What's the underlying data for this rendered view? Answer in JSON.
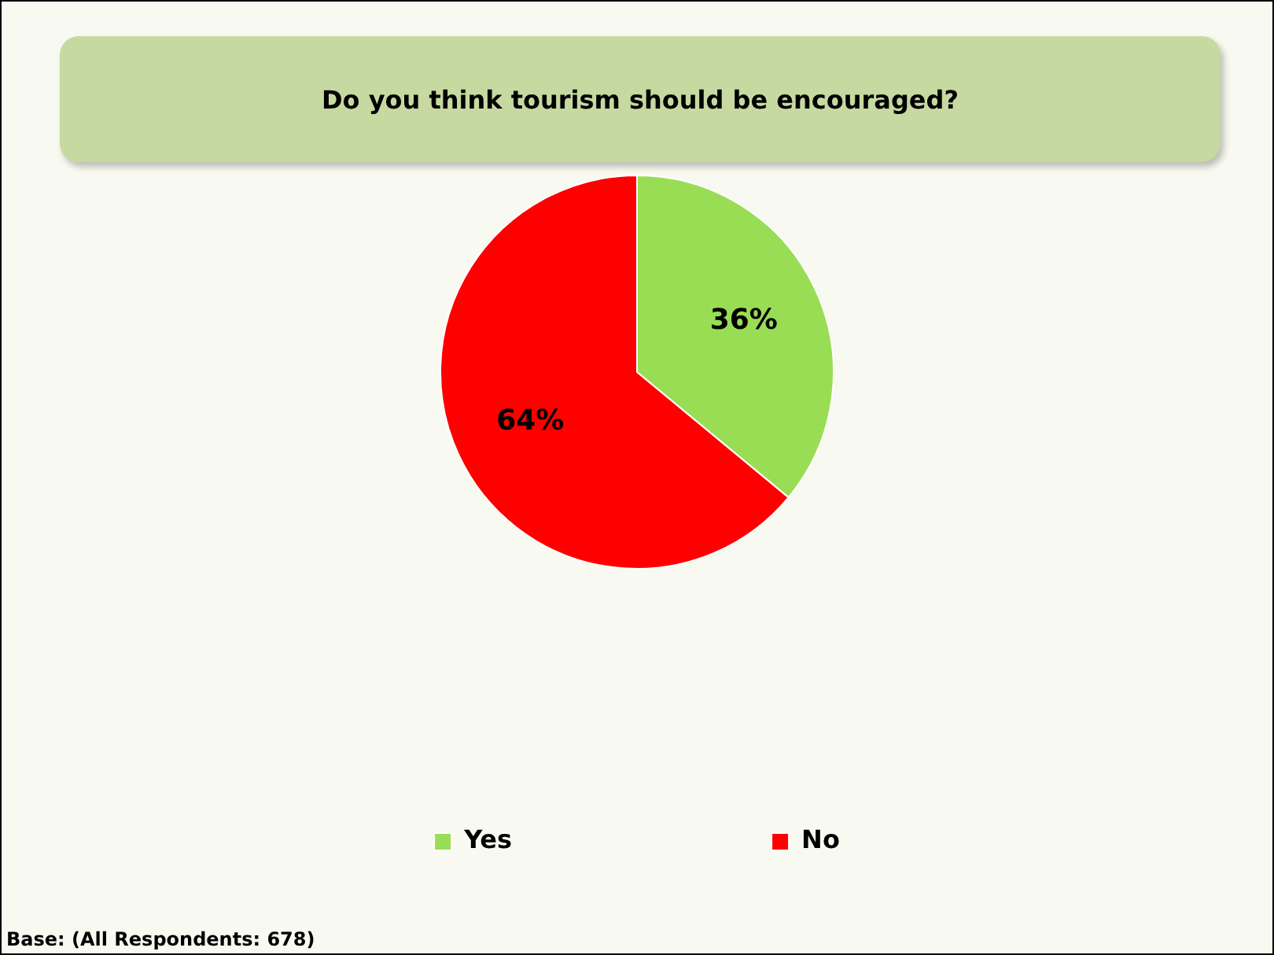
{
  "chart_data": {
    "type": "pie",
    "title": "Do you think tourism should be encouraged?",
    "categories": [
      "Yes",
      "No"
    ],
    "values": [
      36,
      64
    ],
    "colors": [
      "#99dd55",
      "#ff0000"
    ],
    "value_labels": [
      "36%",
      "64%"
    ],
    "legend": "bottom",
    "annotations": [
      "Base: (All Respondents: 678)"
    ]
  }
}
